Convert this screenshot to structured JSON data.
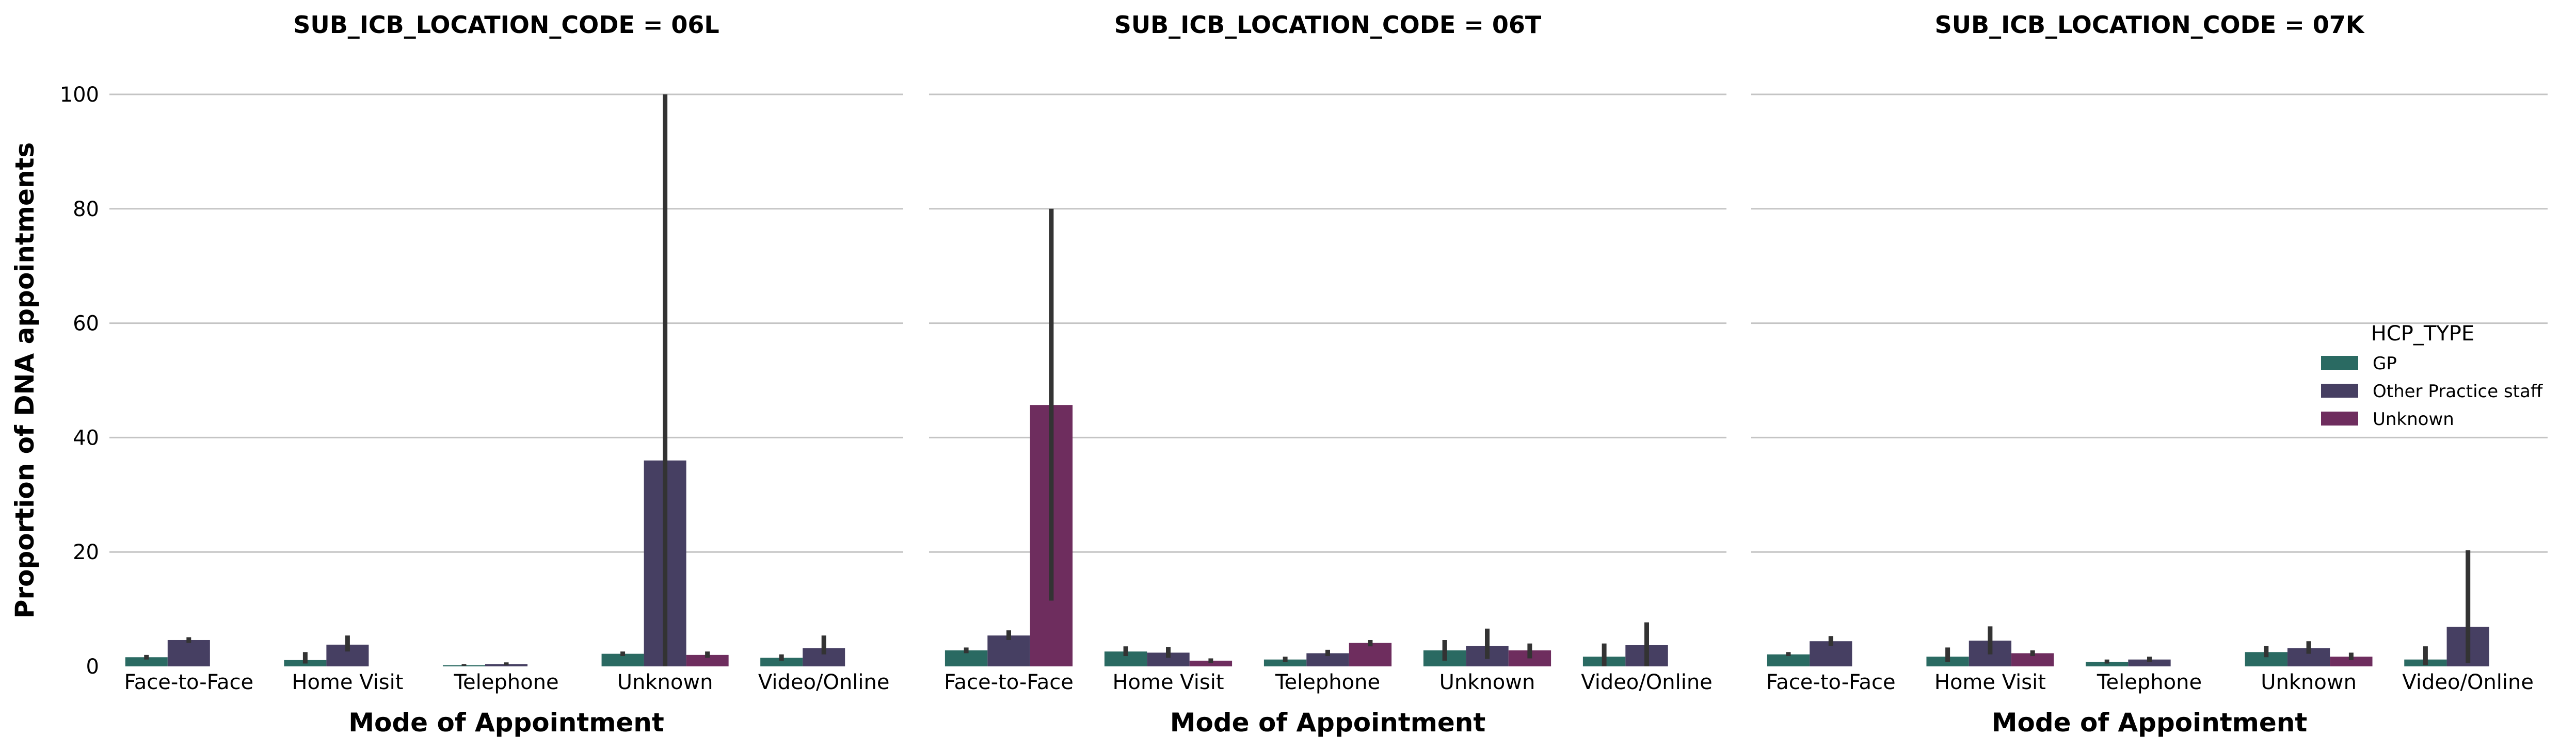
{
  "chart_data": {
    "type": "bar",
    "facet_variable": "SUB_ICB_LOCATION_CODE",
    "ylabel": "Proportion of DNA appointments",
    "ylim": [
      0,
      100
    ],
    "yticks": [
      0,
      20,
      40,
      60,
      80,
      100
    ],
    "grid": "horizontal",
    "legend": {
      "title": "HCP_TYPE",
      "placement": "right",
      "entries": [
        "GP",
        "Other Practice staff",
        "Unknown"
      ]
    },
    "colors": {
      "GP": "#2a6a62",
      "Other Practice staff": "#463f62",
      "Unknown": "#6e2d5e"
    },
    "facets": [
      {
        "title": "SUB_ICB_LOCATION_CODE = 06L",
        "xlabel": "Mode of Appointment",
        "categories": [
          "Face-to-Face",
          "Home Visit",
          "Telephone",
          "Unknown",
          "Video/Online"
        ],
        "series": [
          {
            "name": "GP",
            "values": [
              1.6,
              1.1,
              0.2,
              2.2,
              1.5
            ],
            "err_low": [
              1.2,
              0.5,
              0.1,
              1.8,
              1.0
            ],
            "err_high": [
              2.0,
              2.5,
              0.4,
              2.6,
              2.1
            ]
          },
          {
            "name": "Other Practice staff",
            "values": [
              4.6,
              3.8,
              0.4,
              36.0,
              3.2
            ],
            "err_low": [
              4.1,
              2.6,
              0.2,
              0.0,
              2.1
            ],
            "err_high": [
              5.1,
              5.4,
              0.7,
              100.0,
              5.4
            ]
          },
          {
            "name": "Unknown",
            "values": [
              null,
              null,
              null,
              2.0,
              null
            ],
            "err_low": [
              null,
              null,
              null,
              1.5,
              null
            ],
            "err_high": [
              null,
              null,
              null,
              2.6,
              null
            ]
          }
        ]
      },
      {
        "title": "SUB_ICB_LOCATION_CODE = 06T",
        "xlabel": "Mode of Appointment",
        "categories": [
          "Face-to-Face",
          "Home Visit",
          "Telephone",
          "Unknown",
          "Video/Online"
        ],
        "series": [
          {
            "name": "GP",
            "values": [
              2.8,
              2.6,
              1.2,
              2.8,
              1.7
            ],
            "err_low": [
              2.3,
              1.8,
              0.8,
              1.0,
              0.0
            ],
            "err_high": [
              3.3,
              3.5,
              1.7,
              4.6,
              4.0
            ]
          },
          {
            "name": "Other Practice staff",
            "values": [
              5.4,
              2.4,
              2.3,
              3.6,
              3.7
            ],
            "err_low": [
              4.6,
              1.5,
              1.8,
              1.3,
              0.0
            ],
            "err_high": [
              6.3,
              3.4,
              2.9,
              6.6,
              7.7
            ]
          },
          {
            "name": "Unknown",
            "values": [
              45.7,
              1.0,
              4.1,
              2.8,
              null
            ],
            "err_low": [
              11.5,
              0.6,
              3.5,
              1.4,
              null
            ],
            "err_high": [
              80.0,
              1.4,
              4.6,
              4.0,
              null
            ]
          }
        ]
      },
      {
        "title": "SUB_ICB_LOCATION_CODE = 07K",
        "xlabel": "Mode of Appointment",
        "categories": [
          "Face-to-Face",
          "Home Visit",
          "Telephone",
          "Unknown",
          "Video/Online"
        ],
        "series": [
          {
            "name": "GP",
            "values": [
              2.1,
              1.7,
              0.8,
              2.5,
              1.2
            ],
            "err_low": [
              1.8,
              0.8,
              0.5,
              1.6,
              0.2
            ],
            "err_high": [
              2.5,
              3.3,
              1.2,
              3.6,
              3.5
            ]
          },
          {
            "name": "Other Practice staff",
            "values": [
              4.4,
              4.5,
              1.2,
              3.2,
              6.9
            ],
            "err_low": [
              3.6,
              2.1,
              0.8,
              2.2,
              0.6
            ],
            "err_high": [
              5.3,
              7.0,
              1.7,
              4.4,
              20.3
            ]
          },
          {
            "name": "Unknown",
            "values": [
              null,
              2.3,
              null,
              1.7,
              null
            ],
            "err_low": [
              null,
              1.8,
              null,
              1.1,
              null
            ],
            "err_high": [
              null,
              2.8,
              null,
              2.4,
              null
            ]
          }
        ]
      }
    ]
  }
}
